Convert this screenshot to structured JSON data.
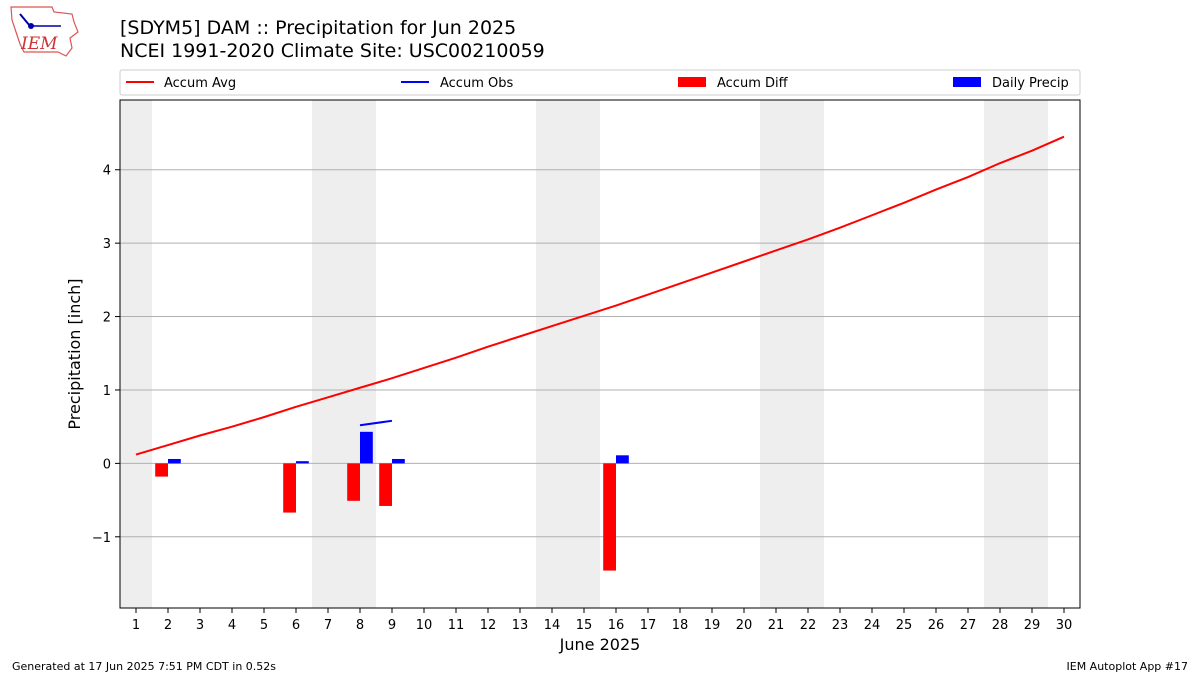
{
  "header": {
    "title_line1": "[SDYM5] DAM :: Precipitation for Jun 2025",
    "title_line2": "NCEI 1991-2020 Climate Site: USC00210059",
    "logo_text": "IEM"
  },
  "footer": {
    "generated": "Generated at 17 Jun 2025 7:51 PM CDT in 0.52s",
    "app": "IEM Autoplot App #17"
  },
  "chart_data": {
    "type": "bar",
    "title": "[SDYM5] DAM :: Precipitation for Jun 2025",
    "xlabel": "June 2025",
    "ylabel": "Precipitation [inch]",
    "xlim": [
      0.5,
      30.5
    ],
    "ylim": [
      -1.97,
      4.95
    ],
    "yticks": [
      -1,
      0,
      1,
      2,
      3,
      4
    ],
    "ytick_labels": [
      "−1",
      "0",
      "1",
      "2",
      "3",
      "4"
    ],
    "days": [
      1,
      2,
      3,
      4,
      5,
      6,
      7,
      8,
      9,
      10,
      11,
      12,
      13,
      14,
      15,
      16,
      17,
      18,
      19,
      20,
      21,
      22,
      23,
      24,
      25,
      26,
      27,
      28,
      29,
      30
    ],
    "weekend_spans": [
      [
        0.5,
        1.5
      ],
      [
        6.5,
        8.5
      ],
      [
        13.5,
        15.5
      ],
      [
        20.5,
        22.5
      ],
      [
        27.5,
        29.5
      ]
    ],
    "legend": [
      "Accum Avg",
      "Accum Obs",
      "Accum Diff",
      "Daily Precip"
    ],
    "legend_position": "top",
    "series": [
      {
        "name": "Accum Avg",
        "kind": "line",
        "color": "#ff0000",
        "x": [
          1,
          2,
          3,
          4,
          5,
          6,
          7,
          8,
          9,
          10,
          11,
          12,
          13,
          14,
          15,
          16,
          17,
          18,
          19,
          20,
          21,
          22,
          23,
          24,
          25,
          26,
          27,
          28,
          29,
          30
        ],
        "values": [
          0.12,
          0.25,
          0.38,
          0.5,
          0.63,
          0.77,
          0.9,
          1.03,
          1.16,
          1.3,
          1.44,
          1.59,
          1.73,
          1.87,
          2.01,
          2.15,
          2.3,
          2.45,
          2.6,
          2.75,
          2.9,
          3.05,
          3.21,
          3.38,
          3.55,
          3.73,
          3.9,
          4.09,
          4.26,
          4.45
        ]
      },
      {
        "name": "Accum Obs",
        "kind": "line",
        "color": "#0000ff",
        "x": [
          8,
          9
        ],
        "values": [
          0.52,
          0.58
        ]
      },
      {
        "name": "Accum Diff",
        "kind": "bar",
        "color": "#ff0000",
        "offset": -0.2,
        "x": [
          2,
          6,
          8,
          9,
          16
        ],
        "values": [
          -0.18,
          -0.67,
          -0.51,
          -0.58,
          -1.46
        ]
      },
      {
        "name": "Daily Precip",
        "kind": "bar",
        "color": "#0000ff",
        "offset": 0.2,
        "x": [
          2,
          6,
          8,
          9,
          16
        ],
        "values": [
          0.06,
          0.03,
          0.43,
          0.06,
          0.11
        ]
      }
    ]
  }
}
